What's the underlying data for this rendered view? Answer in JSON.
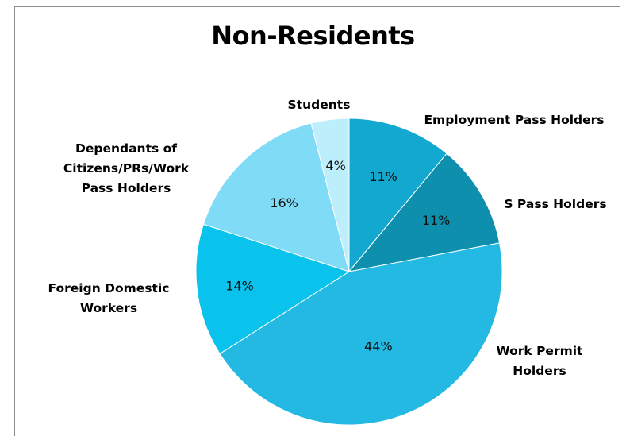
{
  "chart_data": {
    "type": "pie",
    "title": "Non-Residents",
    "start_angle_deg": 0,
    "direction": "clockwise",
    "slices": [
      {
        "label": "Employment Pass Holders",
        "label_lines": [
          "Employment Pass Holders"
        ],
        "value": 11,
        "display": "11%",
        "color": "#12a8cf"
      },
      {
        "label": "S Pass Holders",
        "label_lines": [
          "S Pass Holders"
        ],
        "value": 11,
        "display": "11%",
        "color": "#0e8fae"
      },
      {
        "label": "Work Permit Holders",
        "label_lines": [
          "Work Permit",
          "Holders"
        ],
        "value": 44,
        "display": "44%",
        "color": "#23b9e2"
      },
      {
        "label": "Foreign Domestic Workers",
        "label_lines": [
          "Foreign Domestic",
          "Workers"
        ],
        "value": 14,
        "display": "14%",
        "color": "#0ac3ec"
      },
      {
        "label": "Dependants of Citizens/PRs/Work Pass Holders",
        "label_lines": [
          "Dependants of",
          "Citizens/PRs/Work",
          "Pass Holders"
        ],
        "value": 16,
        "display": "16%",
        "color": "#80dbf7"
      },
      {
        "label": "Students",
        "label_lines": [
          "Students"
        ],
        "value": 4,
        "display": "4%",
        "color": "#bdeefb"
      }
    ],
    "legend": "none",
    "labels": "outside-category-inside-percent"
  }
}
